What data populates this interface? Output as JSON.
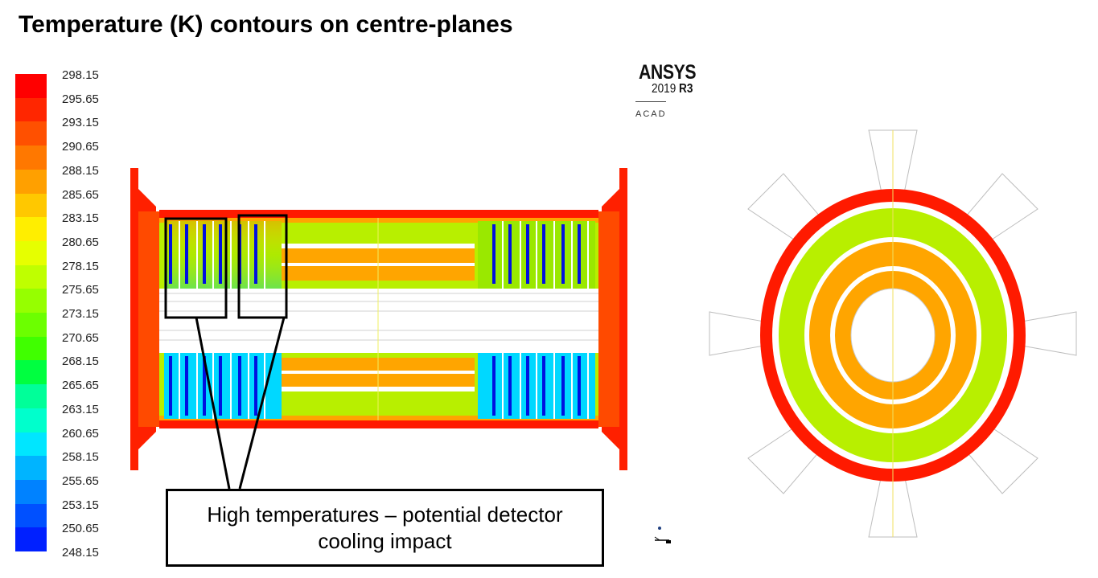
{
  "title": "Temperature (K) contours on centre-planes",
  "legend": {
    "levels": [
      "298.15",
      "295.65",
      "293.15",
      "290.65",
      "288.15",
      "285.65",
      "283.15",
      "280.65",
      "278.15",
      "275.65",
      "273.15",
      "270.65",
      "268.15",
      "265.65",
      "263.15",
      "260.65",
      "258.15",
      "255.65",
      "253.15",
      "250.65",
      "248.15"
    ],
    "colors": [
      "#ff0000",
      "#ff2600",
      "#ff5000",
      "#ff7800",
      "#ffa000",
      "#ffc800",
      "#ffee00",
      "#e6ff00",
      "#bfff00",
      "#96ff00",
      "#6cff00",
      "#40ff00",
      "#00ff40",
      "#00ff99",
      "#00ffcc",
      "#00e6ff",
      "#00b4ff",
      "#0082ff",
      "#0050ff",
      "#0020ff"
    ]
  },
  "branding": {
    "logo": "ANSYS",
    "version": "2019",
    "release": "R3",
    "edition": "ACAD"
  },
  "callout": {
    "text": "High temperatures – potential detector\ncooling impact"
  },
  "colors": {
    "hot": "#ff1a00",
    "warm": "#ffa500",
    "mild": "#b8ef00",
    "cool": "#00e0ff",
    "cold": "#0010e0",
    "outline": "#000000"
  }
}
